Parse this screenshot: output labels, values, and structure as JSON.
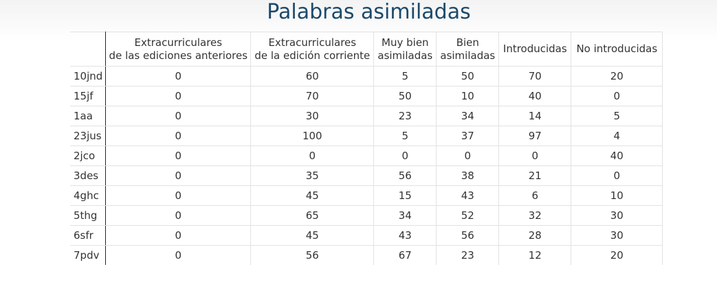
{
  "title": "Palabras asimiladas",
  "columns": [
    {
      "line1": "Extracurriculares",
      "line2": "de las ediciones anteriores"
    },
    {
      "line1": "Extracurriculares",
      "line2": "de la edición corriente"
    },
    {
      "line1": "Muy bien",
      "line2": "asimiladas"
    },
    {
      "line1": "Bien",
      "line2": "asimiladas"
    },
    {
      "line1": "Introducidas",
      "line2": ""
    },
    {
      "line1": "No introducidas",
      "line2": ""
    }
  ],
  "rows": [
    {
      "label": "10jnd",
      "values": [
        "0",
        "60",
        "5",
        "50",
        "70",
        "20"
      ]
    },
    {
      "label": "15jf",
      "values": [
        "0",
        "70",
        "50",
        "10",
        "40",
        "0"
      ]
    },
    {
      "label": "1aa",
      "values": [
        "0",
        "30",
        "23",
        "34",
        "14",
        "5"
      ]
    },
    {
      "label": "23jus",
      "values": [
        "0",
        "100",
        "5",
        "37",
        "97",
        "4"
      ]
    },
    {
      "label": "2jco",
      "values": [
        "0",
        "0",
        "0",
        "0",
        "0",
        "40"
      ]
    },
    {
      "label": "3des",
      "values": [
        "0",
        "35",
        "56",
        "38",
        "21",
        "0"
      ]
    },
    {
      "label": "4ghc",
      "values": [
        "0",
        "45",
        "15",
        "43",
        "6",
        "10"
      ]
    },
    {
      "label": "5thg",
      "values": [
        "0",
        "65",
        "34",
        "52",
        "32",
        "30"
      ]
    },
    {
      "label": "6sfr",
      "values": [
        "0",
        "45",
        "43",
        "56",
        "28",
        "30"
      ]
    },
    {
      "label": "7pdv",
      "values": [
        "0",
        "56",
        "67",
        "23",
        "12",
        "20"
      ]
    }
  ]
}
